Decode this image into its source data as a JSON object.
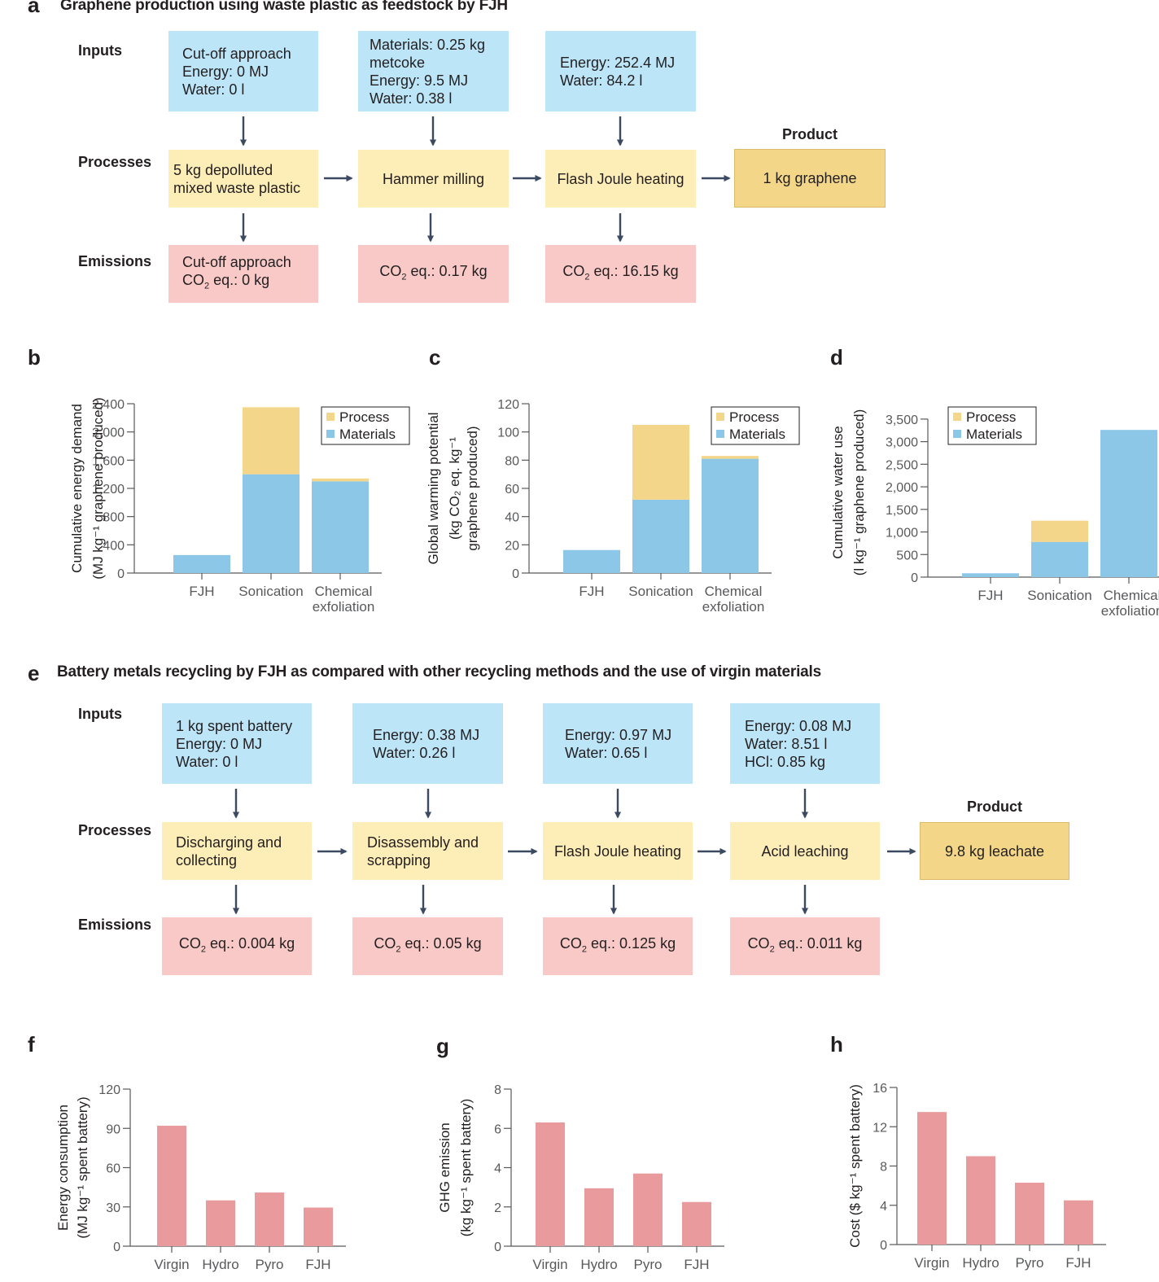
{
  "panel_a": {
    "label": "a",
    "title": "Graphene production using waste plastic as feedstock by FJH",
    "rows": {
      "inputs": "Inputs",
      "processes": "Processes",
      "emissions": "Emissions"
    },
    "product_label": "Product",
    "inputs": [
      [
        "Cut-off approach",
        "Energy: 0 MJ",
        "Water: 0 l"
      ],
      [
        "Materials: 0.25 kg",
        "metcoke",
        "Energy: 9.5 MJ",
        "Water: 0.38 l"
      ],
      [
        "Energy: 252.4 MJ",
        "Water: 84.2 l"
      ]
    ],
    "processes": [
      [
        "5 kg depolluted",
        "mixed waste plastic"
      ],
      [
        "Hammer milling"
      ],
      [
        "Flash Joule heating"
      ]
    ],
    "product": "1 kg graphene",
    "emissions": [
      {
        "pre": "Cut-off approach",
        "co": "CO",
        "sub": "2",
        "post": " eq.: 0 kg"
      },
      {
        "pre": "",
        "co": "CO",
        "sub": "2",
        "post": " eq.: 0.17 kg"
      },
      {
        "pre": "",
        "co": "CO",
        "sub": "2",
        "post": " eq.: 16.15 kg"
      }
    ]
  },
  "panel_e": {
    "label": "e",
    "title": "Battery metals recycling by FJH as compared with other recycling methods and the use of virgin materials",
    "rows": {
      "inputs": "Inputs",
      "processes": "Processes",
      "emissions": "Emissions"
    },
    "product_label": "Product",
    "inputs": [
      [
        "1 kg spent battery",
        "Energy: 0 MJ",
        "Water: 0 l"
      ],
      [
        "Energy: 0.38 MJ",
        "Water: 0.26 l"
      ],
      [
        "Energy: 0.97 MJ",
        "Water: 0.65 l"
      ],
      [
        "Energy: 0.08 MJ",
        "Water: 8.51 l",
        "HCl: 0.85 kg"
      ]
    ],
    "processes": [
      [
        "Discharging and",
        "collecting"
      ],
      [
        "Disassembly and",
        "scrapping"
      ],
      [
        "Flash Joule heating"
      ],
      [
        "Acid leaching"
      ]
    ],
    "product": "9.8 kg leachate",
    "emissions": [
      {
        "co": "CO",
        "sub": "2",
        "post": " eq.: 0.004 kg"
      },
      {
        "co": "CO",
        "sub": "2",
        "post": " eq.: 0.05 kg"
      },
      {
        "co": "CO",
        "sub": "2",
        "post": " eq.: 0.125 kg"
      },
      {
        "co": "CO",
        "sub": "2",
        "post": " eq.: 0.011 kg"
      }
    ]
  },
  "colors": {
    "input": "#bde5f8",
    "process": "#fdedb7",
    "emission": "#f8c9c7",
    "product": "#f4d689",
    "bar_process": "#f4d68a",
    "bar_materials": "#8cc7e8",
    "bar_red": "#e99a9c",
    "arrow": "#3b4a60"
  },
  "chart_data": [
    {
      "panel": "b",
      "type": "bar",
      "stacked": true,
      "categories": [
        [
          "FJH"
        ],
        [
          "Sonication"
        ],
        [
          "Chemical",
          "exfoliation"
        ]
      ],
      "series": [
        {
          "name": "Materials",
          "values": [
            255,
            1400,
            1300
          ]
        },
        {
          "name": "Process",
          "values": [
            0,
            950,
            40
          ]
        }
      ],
      "ylabel": [
        "Cumulative energy demand",
        "(MJ kg⁻¹ graphene produced)"
      ],
      "ylim": [
        0,
        2400
      ],
      "yticks": [
        0,
        400,
        800,
        1200,
        1600,
        2000,
        2400
      ],
      "ytick_labels": [
        "0",
        "400",
        "800",
        "1,200",
        "1,600",
        "2,000",
        "2,400"
      ],
      "legend": [
        "Process",
        "Materials"
      ],
      "legend_position": "top-right"
    },
    {
      "panel": "c",
      "type": "bar",
      "stacked": true,
      "categories": [
        [
          "FJH"
        ],
        [
          "Sonication"
        ],
        [
          "Chemical",
          "exfoliation"
        ]
      ],
      "series": [
        {
          "name": "Materials",
          "values": [
            16.3,
            52,
            81
          ]
        },
        {
          "name": "Process",
          "values": [
            0,
            53,
            2
          ]
        }
      ],
      "ylabel": [
        "Global warming potential",
        "(kg CO₂ eq. kg⁻¹",
        "graphene produced)"
      ],
      "ylim": [
        0,
        120
      ],
      "yticks": [
        0,
        20,
        40,
        60,
        80,
        100,
        120
      ],
      "ytick_labels": [
        "0",
        "20",
        "40",
        "60",
        "80",
        "100",
        "120"
      ],
      "legend": [
        "Process",
        "Materials"
      ],
      "legend_position": "top-right"
    },
    {
      "panel": "d",
      "type": "bar",
      "stacked": true,
      "categories": [
        [
          "FJH"
        ],
        [
          "Sonication"
        ],
        [
          "Chemical",
          "exfoliation"
        ]
      ],
      "series": [
        {
          "name": "Materials",
          "values": [
            85,
            780,
            3260
          ]
        },
        {
          "name": "Process",
          "values": [
            0,
            470,
            0
          ]
        }
      ],
      "ylabel": [
        "Cumulative water use",
        "(l kg⁻¹ graphene produced)"
      ],
      "ylim": [
        0,
        3750
      ],
      "yticks": [
        0,
        500,
        1000,
        1500,
        2000,
        2500,
        3000,
        3500
      ],
      "ytick_labels": [
        "0",
        "500",
        "1,000",
        "1,500",
        "2,000",
        "2,500",
        "3,000",
        "3,500"
      ],
      "legend": [
        "Process",
        "Materials"
      ],
      "legend_position": "top-left"
    },
    {
      "panel": "f",
      "type": "bar",
      "stacked": false,
      "categories": [
        [
          "Virgin"
        ],
        [
          "Hydro"
        ],
        [
          "Pyro"
        ],
        [
          "FJH"
        ]
      ],
      "series": [
        {
          "name": "Energy consumption",
          "values": [
            92,
            35,
            41,
            29.5
          ]
        }
      ],
      "ylabel": [
        "Energy consumption",
        "(MJ kg⁻¹ spent battery)"
      ],
      "ylim": [
        0,
        120
      ],
      "yticks": [
        0,
        30,
        60,
        90,
        120
      ],
      "ytick_labels": [
        "0",
        "30",
        "60",
        "90",
        "120"
      ]
    },
    {
      "panel": "g",
      "type": "bar",
      "stacked": false,
      "categories": [
        [
          "Virgin"
        ],
        [
          "Hydro"
        ],
        [
          "Pyro"
        ],
        [
          "FJH"
        ]
      ],
      "series": [
        {
          "name": "GHG emission",
          "values": [
            6.3,
            2.95,
            3.7,
            2.25
          ]
        }
      ],
      "ylabel": [
        "GHG emission",
        "(kg kg⁻¹ spent battery)"
      ],
      "ylim": [
        0,
        8
      ],
      "yticks": [
        0,
        2,
        4,
        6,
        8
      ],
      "ytick_labels": [
        "0",
        "2",
        "4",
        "6",
        "8"
      ]
    },
    {
      "panel": "h",
      "type": "bar",
      "stacked": false,
      "categories": [
        [
          "Virgin"
        ],
        [
          "Hydro"
        ],
        [
          "Pyro"
        ],
        [
          "FJH"
        ]
      ],
      "series": [
        {
          "name": "Cost",
          "values": [
            13.5,
            9,
            6.3,
            4.5
          ]
        }
      ],
      "ylabel": [
        "Cost ($ kg⁻¹ spent battery)"
      ],
      "ylim": [
        0,
        16
      ],
      "yticks": [
        0,
        4,
        8,
        12,
        16
      ],
      "ytick_labels": [
        "0",
        "4",
        "8",
        "12",
        "16"
      ]
    }
  ]
}
